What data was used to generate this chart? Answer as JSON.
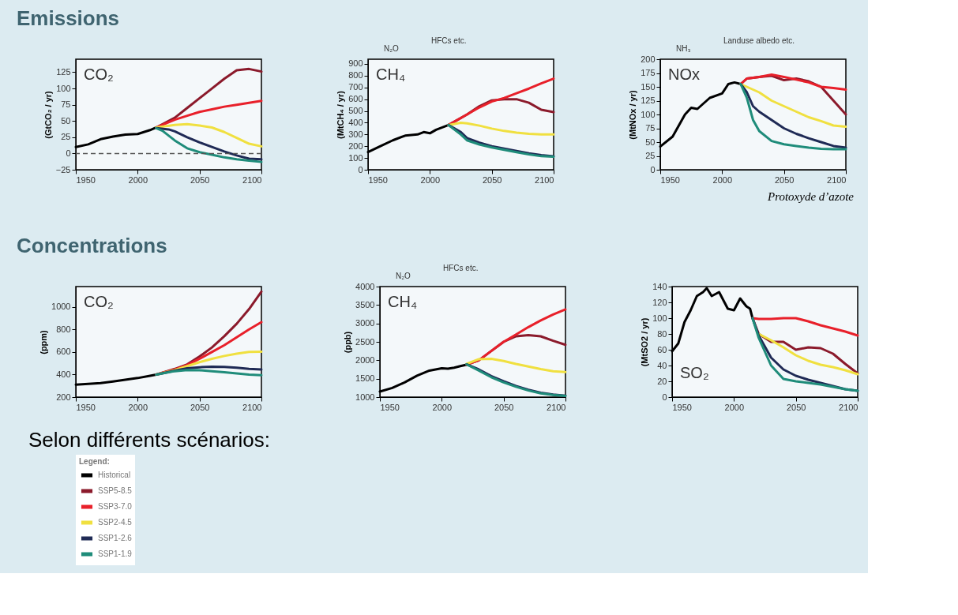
{
  "chart_data": [
    {
      "type": "line",
      "title": "CO₂",
      "ylabel": "(GtCO₂ / yr)",
      "annotations": [
        "Emissions"
      ],
      "xlim": [
        1950,
        2100
      ],
      "xticks": [
        1950,
        2000,
        2050,
        2100
      ],
      "ylim": [
        -25,
        145
      ],
      "yticks": [
        -25,
        0,
        25,
        50,
        75,
        100,
        125
      ],
      "grid": false,
      "legend": "bottom",
      "legend_title": "Legend:",
      "ref_lines": [
        {
          "axis": "y",
          "value": 0,
          "color": "#555555",
          "line_style": "dashed"
        }
      ],
      "series": [
        {
          "name": "Historical",
          "color": "#000000",
          "x": [
            1950,
            1960,
            1970,
            1980,
            1990,
            2000,
            2005,
            2010,
            2015
          ],
          "values": [
            10,
            14,
            22,
            26,
            29,
            30,
            33,
            36,
            40
          ]
        },
        {
          "name": "SSP5-8.5",
          "color": "#8b1a2b",
          "x": [
            2015,
            2030,
            2040,
            2050,
            2060,
            2070,
            2080,
            2090,
            2100
          ],
          "values": [
            40,
            55,
            70,
            85,
            100,
            115,
            128,
            130,
            126
          ]
        },
        {
          "name": "SSP3-7.0",
          "color": "#e8202a",
          "x": [
            2015,
            2030,
            2040,
            2050,
            2060,
            2070,
            2080,
            2090,
            2100
          ],
          "values": [
            40,
            52,
            58,
            64,
            68,
            72,
            75,
            78,
            81
          ]
        },
        {
          "name": "SSP2-4.5",
          "color": "#f0e040",
          "x": [
            2015,
            2030,
            2040,
            2050,
            2060,
            2070,
            2080,
            2090,
            2100
          ],
          "values": [
            40,
            44,
            45,
            43,
            40,
            33,
            24,
            15,
            11
          ]
        },
        {
          "name": "SSP1-2.6",
          "color": "#1f2a55",
          "x": [
            2015,
            2025,
            2030,
            2040,
            2050,
            2060,
            2070,
            2080,
            2090,
            2100
          ],
          "values": [
            39,
            37,
            34,
            25,
            17,
            10,
            3,
            -3,
            -8,
            -9
          ]
        },
        {
          "name": "SSP1-1.9",
          "color": "#1f8c7a",
          "x": [
            2015,
            2020,
            2030,
            2040,
            2050,
            2060,
            2070,
            2080,
            2090,
            2100
          ],
          "values": [
            39,
            35,
            20,
            8,
            2,
            -2,
            -6,
            -9,
            -11,
            -13
          ]
        }
      ]
    },
    {
      "type": "line",
      "title": "CH₄",
      "ylabel": "(MtCH₄ / yr)",
      "annotations": [
        "N₂O",
        "HFCs etc."
      ],
      "xlim": [
        1950,
        2100
      ],
      "xticks": [
        1950,
        2000,
        2050,
        2100
      ],
      "ylim": [
        0,
        940
      ],
      "yticks": [
        0,
        100,
        200,
        300,
        400,
        500,
        600,
        700,
        800,
        900
      ],
      "grid": false,
      "legend": "bottom",
      "series": [
        {
          "name": "Historical",
          "color": "#000000",
          "x": [
            1950,
            1960,
            1970,
            1980,
            1990,
            1995,
            2000,
            2005,
            2015
          ],
          "values": [
            150,
            200,
            250,
            290,
            300,
            320,
            310,
            340,
            380
          ]
        },
        {
          "name": "SSP5-8.5",
          "color": "#8b1a2b",
          "x": [
            2015,
            2030,
            2040,
            2050,
            2060,
            2070,
            2080,
            2090,
            2100
          ],
          "values": [
            380,
            470,
            540,
            590,
            600,
            600,
            570,
            510,
            490
          ]
        },
        {
          "name": "SSP3-7.0",
          "color": "#e8202a",
          "x": [
            2015,
            2030,
            2040,
            2050,
            2060,
            2070,
            2080,
            2090,
            2100
          ],
          "values": [
            380,
            470,
            530,
            580,
            610,
            650,
            690,
            735,
            775
          ]
        },
        {
          "name": "SSP2-4.5",
          "color": "#f0e040",
          "x": [
            2015,
            2025,
            2030,
            2040,
            2050,
            2060,
            2070,
            2080,
            2090,
            2100
          ],
          "values": [
            380,
            400,
            395,
            375,
            350,
            330,
            315,
            305,
            300,
            300
          ]
        },
        {
          "name": "SSP1-2.6",
          "color": "#1f2a55",
          "x": [
            2015,
            2025,
            2030,
            2040,
            2050,
            2060,
            2070,
            2080,
            2090,
            2100
          ],
          "values": [
            380,
            320,
            270,
            230,
            200,
            180,
            160,
            140,
            125,
            115
          ]
        },
        {
          "name": "SSP1-1.9",
          "color": "#1f8c7a",
          "x": [
            2015,
            2025,
            2030,
            2040,
            2050,
            2060,
            2070,
            2080,
            2090,
            2100
          ],
          "values": [
            380,
            300,
            250,
            215,
            190,
            170,
            150,
            130,
            115,
            110
          ]
        }
      ]
    },
    {
      "type": "line",
      "title": "NOx",
      "ylabel": "(MtNOx / yr)",
      "annotations": [
        "NH₃",
        "Landuse albedo etc.",
        "Protoxyde d’azote"
      ],
      "xlim": [
        1950,
        2100
      ],
      "xticks": [
        1950,
        2000,
        2050,
        2100
      ],
      "ylim": [
        0,
        200
      ],
      "yticks": [
        0,
        25,
        50,
        75,
        100,
        125,
        150,
        175,
        200
      ],
      "grid": false,
      "legend": "bottom",
      "series": [
        {
          "name": "Historical",
          "color": "#000000",
          "x": [
            1950,
            1960,
            1970,
            1975,
            1980,
            1990,
            2000,
            2005,
            2010,
            2015
          ],
          "values": [
            42,
            60,
            100,
            112,
            110,
            130,
            138,
            155,
            158,
            155
          ]
        },
        {
          "name": "SSP5-8.5",
          "color": "#8b1a2b",
          "x": [
            2015,
            2020,
            2030,
            2040,
            2050,
            2060,
            2070,
            2080,
            2090,
            2100
          ],
          "values": [
            155,
            165,
            168,
            170,
            162,
            165,
            160,
            150,
            125,
            100
          ]
        },
        {
          "name": "SSP3-7.0",
          "color": "#e8202a",
          "x": [
            2015,
            2020,
            2030,
            2040,
            2050,
            2060,
            2070,
            2080,
            2090,
            2100
          ],
          "values": [
            155,
            165,
            168,
            172,
            168,
            163,
            158,
            150,
            148,
            145
          ]
        },
        {
          "name": "SSP2-4.5",
          "color": "#f0e040",
          "x": [
            2015,
            2020,
            2030,
            2040,
            2050,
            2060,
            2070,
            2080,
            2090,
            2100
          ],
          "values": [
            155,
            150,
            140,
            125,
            115,
            105,
            95,
            88,
            80,
            78
          ]
        },
        {
          "name": "SSP1-2.6",
          "color": "#1f2a55",
          "x": [
            2015,
            2020,
            2025,
            2030,
            2040,
            2050,
            2060,
            2070,
            2080,
            2090,
            2100
          ],
          "values": [
            155,
            140,
            115,
            105,
            90,
            75,
            65,
            57,
            50,
            43,
            40
          ]
        },
        {
          "name": "SSP1-1.9",
          "color": "#1f8c7a",
          "x": [
            2015,
            2020,
            2025,
            2030,
            2040,
            2050,
            2060,
            2070,
            2080,
            2090,
            2100
          ],
          "values": [
            155,
            130,
            90,
            70,
            52,
            46,
            43,
            40,
            38,
            37,
            37
          ]
        }
      ]
    },
    {
      "type": "line",
      "title": "CO₂",
      "ylabel": "(ppm)",
      "annotations": [
        "Concentrations",
        "Selon différents scénarios:"
      ],
      "xlim": [
        1950,
        2100
      ],
      "xticks": [
        1950,
        2000,
        2050,
        2100
      ],
      "ylim": [
        200,
        1180
      ],
      "yticks": [
        200,
        400,
        600,
        800,
        1000
      ],
      "grid": false,
      "legend": "bottom",
      "series": [
        {
          "name": "Historical",
          "color": "#000000",
          "x": [
            1950,
            1960,
            1970,
            1980,
            1990,
            2000,
            2010,
            2015
          ],
          "values": [
            311,
            317,
            325,
            339,
            354,
            369,
            389,
            400
          ]
        },
        {
          "name": "SSP5-8.5",
          "color": "#8b1a2b",
          "x": [
            2015,
            2030,
            2040,
            2050,
            2060,
            2070,
            2080,
            2090,
            2100
          ],
          "values": [
            400,
            450,
            490,
            560,
            640,
            740,
            850,
            980,
            1135
          ]
        },
        {
          "name": "SSP3-7.0",
          "color": "#e8202a",
          "x": [
            2015,
            2030,
            2040,
            2050,
            2060,
            2070,
            2080,
            2090,
            2100
          ],
          "values": [
            400,
            445,
            485,
            540,
            600,
            660,
            730,
            800,
            865
          ]
        },
        {
          "name": "SSP2-4.5",
          "color": "#f0e040",
          "x": [
            2015,
            2030,
            2040,
            2050,
            2060,
            2070,
            2080,
            2090,
            2100
          ],
          "values": [
            400,
            440,
            475,
            510,
            540,
            565,
            585,
            600,
            603
          ]
        },
        {
          "name": "SSP1-2.6",
          "color": "#1f2a55",
          "x": [
            2015,
            2030,
            2040,
            2050,
            2060,
            2070,
            2080,
            2090,
            2100
          ],
          "values": [
            400,
            435,
            455,
            465,
            470,
            468,
            460,
            450,
            445
          ]
        },
        {
          "name": "SSP1-1.9",
          "color": "#1f8c7a",
          "x": [
            2015,
            2030,
            2040,
            2050,
            2060,
            2070,
            2080,
            2090,
            2100
          ],
          "values": [
            400,
            430,
            440,
            438,
            430,
            420,
            410,
            400,
            395
          ]
        }
      ]
    },
    {
      "type": "line",
      "title": "CH₄",
      "ylabel": "(ppb)",
      "annotations": [
        "N₂O",
        "HFCs etc."
      ],
      "xlim": [
        1950,
        2100
      ],
      "xticks": [
        1950,
        2000,
        2050,
        2100
      ],
      "ylim": [
        1000,
        4000
      ],
      "yticks": [
        1000,
        1500,
        2000,
        2500,
        3000,
        3500,
        4000
      ],
      "grid": false,
      "legend": "bottom",
      "series": [
        {
          "name": "Historical",
          "color": "#000000",
          "x": [
            1950,
            1960,
            1970,
            1980,
            1990,
            2000,
            2005,
            2010,
            2015,
            2020
          ],
          "values": [
            1150,
            1250,
            1400,
            1580,
            1720,
            1780,
            1770,
            1800,
            1840,
            1880
          ]
        },
        {
          "name": "SSP5-8.5",
          "color": "#8b1a2b",
          "x": [
            2020,
            2030,
            2040,
            2050,
            2060,
            2070,
            2080,
            2090,
            2100
          ],
          "values": [
            1880,
            2000,
            2250,
            2500,
            2650,
            2680,
            2650,
            2530,
            2420
          ]
        },
        {
          "name": "SSP3-7.0",
          "color": "#e8202a",
          "x": [
            2020,
            2030,
            2040,
            2050,
            2060,
            2070,
            2080,
            2090,
            2100
          ],
          "values": [
            1880,
            2000,
            2250,
            2500,
            2700,
            2900,
            3080,
            3240,
            3380
          ]
        },
        {
          "name": "SSP2-4.5",
          "color": "#f0e040",
          "x": [
            2020,
            2030,
            2040,
            2050,
            2060,
            2070,
            2080,
            2090,
            2100
          ],
          "values": [
            1900,
            2030,
            2040,
            1980,
            1900,
            1830,
            1760,
            1700,
            1680
          ]
        },
        {
          "name": "SSP1-2.6",
          "color": "#1f2a55",
          "x": [
            2020,
            2030,
            2040,
            2050,
            2060,
            2070,
            2080,
            2090,
            2100
          ],
          "values": [
            1890,
            1750,
            1570,
            1430,
            1300,
            1200,
            1120,
            1070,
            1040
          ]
        },
        {
          "name": "SSP1-1.9",
          "color": "#1f8c7a",
          "x": [
            2020,
            2030,
            2040,
            2050,
            2060,
            2070,
            2080,
            2090,
            2100
          ],
          "values": [
            1890,
            1720,
            1540,
            1400,
            1280,
            1180,
            1100,
            1060,
            1030
          ]
        }
      ]
    },
    {
      "type": "line",
      "title": "SO₂",
      "ylabel": "(MtSO2 / yr)",
      "xlim": [
        1950,
        2100
      ],
      "xticks": [
        1950,
        2000,
        2050,
        2100
      ],
      "ylim": [
        0,
        140
      ],
      "yticks": [
        0,
        20,
        40,
        60,
        80,
        100,
        120,
        140
      ],
      "grid": false,
      "legend": "bottom",
      "series": [
        {
          "name": "Historical",
          "color": "#000000",
          "x": [
            1950,
            1955,
            1960,
            1965,
            1970,
            1975,
            1978,
            1982,
            1988,
            1995,
            2000,
            2005,
            2010,
            2013,
            2015
          ],
          "values": [
            58,
            68,
            95,
            110,
            128,
            133,
            138,
            128,
            133,
            112,
            110,
            125,
            115,
            112,
            100
          ]
        },
        {
          "name": "SSP5-8.5",
          "color": "#8b1a2b",
          "x": [
            2015,
            2020,
            2030,
            2040,
            2050,
            2060,
            2070,
            2080,
            2090,
            2100
          ],
          "values": [
            100,
            80,
            70,
            70,
            60,
            63,
            62,
            55,
            42,
            30
          ]
        },
        {
          "name": "SSP3-7.0",
          "color": "#e8202a",
          "x": [
            2015,
            2020,
            2030,
            2040,
            2050,
            2060,
            2070,
            2080,
            2090,
            2100
          ],
          "values": [
            100,
            99,
            99,
            100,
            100,
            96,
            91,
            87,
            83,
            78
          ]
        },
        {
          "name": "SSP2-4.5",
          "color": "#f0e040",
          "x": [
            2020,
            2030,
            2040,
            2050,
            2060,
            2070,
            2080,
            2090,
            2100
          ],
          "values": [
            80,
            72,
            63,
            53,
            46,
            41,
            38,
            34,
            29
          ]
        },
        {
          "name": "SSP1-2.6",
          "color": "#1f2a55",
          "x": [
            2015,
            2020,
            2030,
            2040,
            2050,
            2060,
            2070,
            2080,
            2090,
            2100
          ],
          "values": [
            100,
            78,
            50,
            35,
            27,
            22,
            18,
            14,
            10,
            8
          ]
        },
        {
          "name": "SSP1-1.9",
          "color": "#1f8c7a",
          "x": [
            2015,
            2020,
            2030,
            2040,
            2050,
            2060,
            2070,
            2080,
            2090,
            2100
          ],
          "values": [
            100,
            75,
            40,
            23,
            20,
            18,
            16,
            13,
            10,
            8
          ]
        }
      ]
    }
  ]
}
